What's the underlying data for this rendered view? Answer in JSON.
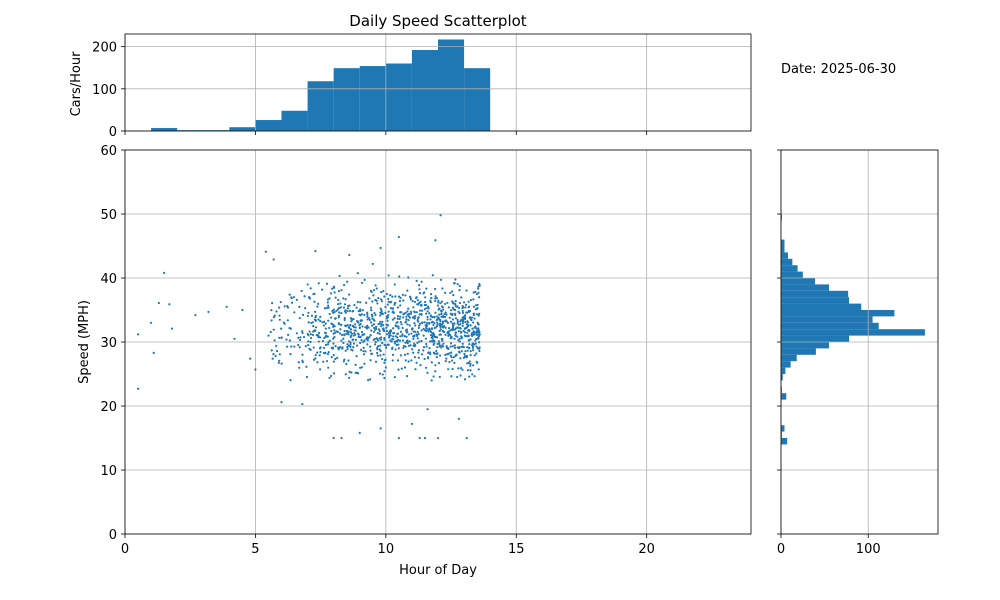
{
  "chart_data": [
    {
      "type": "histogram",
      "title": "Daily Speed Scatterplot",
      "ylabel": "Cars/Hour",
      "xlabel": "",
      "bin_edges": [
        0,
        1,
        2,
        3,
        4,
        5,
        6,
        7,
        8,
        9,
        10,
        11,
        12,
        13,
        14
      ],
      "values": [
        1,
        7,
        2,
        2,
        9,
        26,
        48,
        118,
        149,
        154,
        160,
        192,
        217,
        149
      ],
      "xlim": [
        0,
        24
      ],
      "ylim": [
        0,
        230
      ],
      "yticks": [
        0,
        100,
        200
      ],
      "grid": true,
      "color": "#1f77b4"
    },
    {
      "type": "scatter",
      "xlabel": "Hour of Day",
      "ylabel": "Speed (MPH)",
      "xlim": [
        0,
        24
      ],
      "ylim": [
        0,
        60
      ],
      "xticks": [
        0,
        5,
        10,
        15,
        20
      ],
      "yticks": [
        0,
        10,
        20,
        30,
        40,
        50,
        60
      ],
      "grid": true,
      "color": "#1f77b4",
      "sample_points": [
        {
          "x": 0.5,
          "y": 22.7
        },
        {
          "x": 0.5,
          "y": 31.2
        },
        {
          "x": 1.0,
          "y": 33.0
        },
        {
          "x": 1.1,
          "y": 28.3
        },
        {
          "x": 1.3,
          "y": 36.1
        },
        {
          "x": 1.5,
          "y": 40.8
        },
        {
          "x": 1.7,
          "y": 35.9
        },
        {
          "x": 1.8,
          "y": 32.1
        },
        {
          "x": 2.7,
          "y": 34.2
        },
        {
          "x": 3.2,
          "y": 34.7
        },
        {
          "x": 3.9,
          "y": 35.5
        },
        {
          "x": 4.2,
          "y": 30.5
        },
        {
          "x": 4.5,
          "y": 35.0
        },
        {
          "x": 4.8,
          "y": 27.4
        },
        {
          "x": 5.0,
          "y": 25.7
        },
        {
          "x": 5.4,
          "y": 44.1
        },
        {
          "x": 5.7,
          "y": 42.9
        },
        {
          "x": 6.0,
          "y": 20.6
        },
        {
          "x": 6.8,
          "y": 20.3
        },
        {
          "x": 7.3,
          "y": 44.2
        },
        {
          "x": 8.0,
          "y": 15.0
        },
        {
          "x": 8.3,
          "y": 15.0
        },
        {
          "x": 8.6,
          "y": 43.6
        },
        {
          "x": 9.0,
          "y": 15.8
        },
        {
          "x": 9.5,
          "y": 42.2
        },
        {
          "x": 9.8,
          "y": 44.7
        },
        {
          "x": 9.8,
          "y": 16.5
        },
        {
          "x": 10.5,
          "y": 46.4
        },
        {
          "x": 10.5,
          "y": 15.0
        },
        {
          "x": 11.0,
          "y": 17.2
        },
        {
          "x": 11.3,
          "y": 15.0
        },
        {
          "x": 11.5,
          "y": 15.0
        },
        {
          "x": 11.6,
          "y": 19.5
        },
        {
          "x": 11.9,
          "y": 45.9
        },
        {
          "x": 12.1,
          "y": 49.8
        },
        {
          "x": 12.0,
          "y": 15.0
        },
        {
          "x": 12.8,
          "y": 18.0
        },
        {
          "x": 13.1,
          "y": 15.0
        },
        {
          "x": 13.6,
          "y": 38.8
        }
      ],
      "cloud": {
        "x_range": [
          5.5,
          13.6
        ],
        "speed_center": 32,
        "speed_spread": 3.3
      }
    },
    {
      "type": "histogram",
      "orientation": "horizontal",
      "xlabel": "",
      "ylabel": "",
      "bin_edges": [
        14,
        15,
        16,
        17,
        18,
        19,
        20,
        21,
        22,
        23,
        24,
        25,
        26,
        27,
        28,
        29,
        30,
        31,
        32,
        33,
        34,
        35,
        36,
        37,
        38,
        39,
        40,
        41,
        42,
        43,
        44,
        45,
        46,
        47,
        48,
        49,
        50
      ],
      "values": [
        7,
        1,
        4,
        0,
        0,
        0,
        0,
        6,
        1,
        0,
        2,
        5,
        11,
        18,
        40,
        55,
        78,
        165,
        112,
        105,
        130,
        92,
        78,
        77,
        55,
        39,
        25,
        19,
        13,
        8,
        4,
        4,
        0,
        0,
        0,
        1
      ],
      "xlim": [
        0,
        180
      ],
      "ylim": [
        0,
        60
      ],
      "xticks": [
        0,
        100
      ],
      "grid": true,
      "color": "#1f77b4"
    }
  ],
  "annotation": {
    "date_text": "Date: 2025-06-30"
  }
}
